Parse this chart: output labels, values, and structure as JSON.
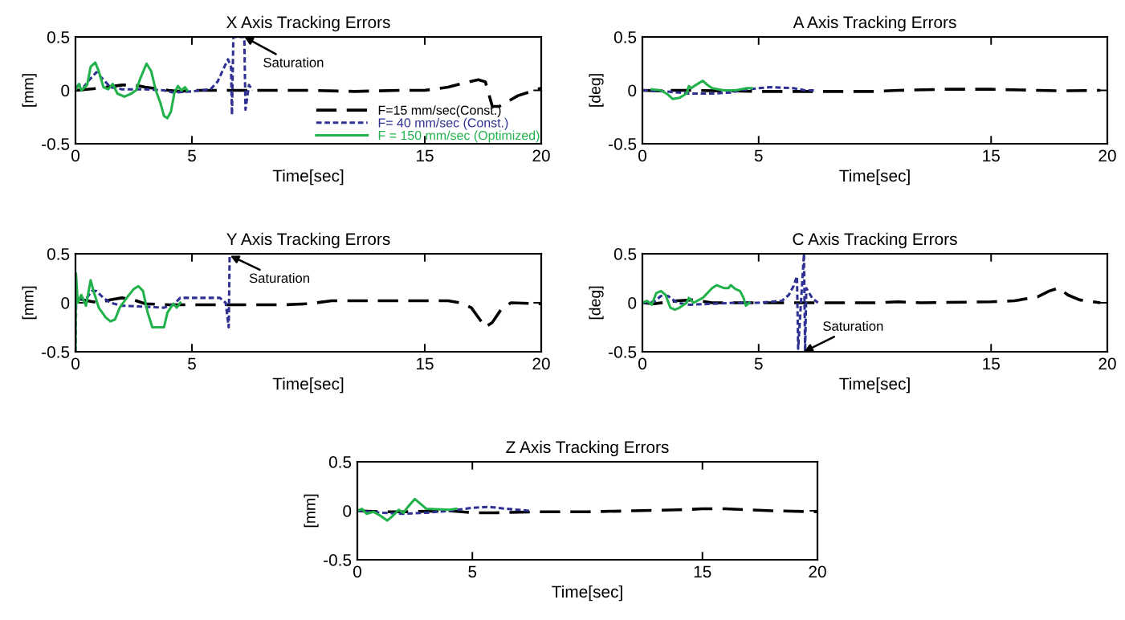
{
  "chart_data": [
    {
      "type": "line",
      "title": "X Axis Tracking Errors",
      "xlabel": "Time[sec]",
      "ylabel": "[mm]",
      "xlim": [
        0,
        20
      ],
      "ylim": [
        -0.5,
        0.5
      ],
      "xticks": [
        0,
        5,
        15,
        20
      ],
      "yticks": [
        -0.5,
        0,
        0.5
      ],
      "grid": false,
      "legend": "bottom right",
      "series": [
        {
          "name": "F=15 mm/sec(Const.)",
          "color": "#000000",
          "line_style": "dashed",
          "x": [
            0,
            1,
            2,
            2.5,
            3,
            4,
            4.5,
            5,
            7,
            10,
            12,
            14,
            15,
            16,
            16.7,
            17.3,
            17.6,
            17.9,
            18.2,
            19,
            20
          ],
          "values": [
            0,
            0.02,
            0.05,
            0.05,
            0.03,
            0.0,
            -0.01,
            0.0,
            0.0,
            0.0,
            -0.01,
            0.0,
            0.0,
            0.03,
            0.07,
            0.1,
            0.08,
            -0.15,
            -0.15,
            -0.05,
            0.02
          ]
        },
        {
          "name": "F= 40 mm/sec (Const.)",
          "color": "#2e3192",
          "line_style": "dotted",
          "x": [
            0,
            0.2,
            0.35,
            0.6,
            0.9,
            1.2,
            1.5,
            2.0,
            3.0,
            3.8,
            4.2,
            5.0,
            5.8,
            6.1,
            6.35,
            6.55,
            6.68,
            6.72,
            6.78,
            7.25,
            7.3,
            7.45,
            7.6
          ],
          "values": [
            0.03,
            0.05,
            0.03,
            0.1,
            0.17,
            0.1,
            0.03,
            0.01,
            0.01,
            0.0,
            -0.02,
            -0.01,
            0.01,
            0.08,
            0.2,
            0.29,
            0.22,
            -0.23,
            0.5,
            0.5,
            -0.18,
            0.05,
            0.0
          ]
        },
        {
          "name": "F = 150 mm/sec (Optimized)",
          "color": "#22b24c",
          "line_style": "solid",
          "x": [
            0,
            0.15,
            0.25,
            0.5,
            0.65,
            0.85,
            1.0,
            1.2,
            1.4,
            1.6,
            1.8,
            2.1,
            2.4,
            2.6,
            2.8,
            3.05,
            3.25,
            3.45,
            3.65,
            3.8,
            3.95,
            4.1,
            4.25,
            4.4,
            4.55,
            4.7,
            4.8
          ],
          "values": [
            0.0,
            0.06,
            0.0,
            0.05,
            0.22,
            0.26,
            0.18,
            0.03,
            0.01,
            0.06,
            -0.03,
            -0.06,
            -0.03,
            0.0,
            0.12,
            0.25,
            0.18,
            0.0,
            -0.12,
            -0.24,
            -0.26,
            -0.2,
            -0.02,
            0.04,
            0.0,
            0.03,
            0.0
          ]
        }
      ],
      "annotations": [
        {
          "text": "Saturation",
          "x": 7.25,
          "y": 0.5
        }
      ]
    },
    {
      "type": "line",
      "title": "A Axis Tracking Errors",
      "xlabel": "Time[sec]",
      "ylabel": "[deg]",
      "xlim": [
        0,
        20
      ],
      "ylim": [
        -0.5,
        0.5
      ],
      "xticks": [
        0,
        5,
        15,
        20
      ],
      "yticks": [
        -0.5,
        0,
        0.5
      ],
      "grid": false,
      "series": [
        {
          "color": "#000000",
          "line_style": "dashed",
          "x": [
            0,
            1,
            1.1,
            1.2,
            2,
            5,
            8,
            10,
            11,
            13,
            15,
            17,
            18,
            19.7
          ],
          "values": [
            0,
            -0.005,
            0.02,
            0.0,
            0.0,
            -0.01,
            -0.01,
            -0.01,
            0.0,
            0.01,
            0.01,
            0.0,
            -0.005,
            0.0
          ]
        },
        {
          "color": "#2e3192",
          "line_style": "dotted",
          "x": [
            0,
            1.0,
            2,
            3,
            3.8,
            4.2,
            5,
            5.5,
            6.5,
            7.0,
            7.5
          ],
          "values": [
            0.0,
            -0.01,
            -0.03,
            -0.03,
            -0.02,
            0.0,
            0.02,
            0.03,
            0.02,
            0.0,
            0.0
          ]
        },
        {
          "color": "#22b24c",
          "line_style": "solid",
          "x": [
            0.4,
            0.8,
            1.1,
            1.3,
            1.6,
            1.9,
            2.0,
            2.1,
            2.3,
            2.6,
            2.8,
            3.0,
            3.5,
            4.0,
            4.5,
            4.7
          ],
          "values": [
            0.01,
            0.0,
            -0.04,
            -0.08,
            -0.07,
            -0.03,
            0.04,
            0.02,
            0.05,
            0.09,
            0.05,
            0.02,
            0.0,
            0.0,
            0.02,
            0.02
          ]
        }
      ]
    },
    {
      "type": "line",
      "title": "Y Axis Tracking Errors",
      "xlabel": "Time[sec]",
      "ylabel": "[mm]",
      "xlim": [
        0,
        20
      ],
      "ylim": [
        -0.5,
        0.5
      ],
      "xticks": [
        0,
        5,
        15,
        20
      ],
      "yticks": [
        -0.5,
        0,
        0.5
      ],
      "grid": false,
      "series": [
        {
          "color": "#000000",
          "line_style": "dashed",
          "x": [
            0,
            0.5,
            1,
            1.5,
            2,
            2.5,
            3,
            4,
            5,
            7,
            9,
            10,
            11,
            12,
            14,
            16,
            16.5,
            17,
            17.3,
            17.6,
            17.9,
            18.3,
            18.7,
            20
          ],
          "values": [
            0.05,
            0.02,
            0.0,
            0.03,
            0.05,
            0.03,
            -0.01,
            -0.02,
            -0.02,
            -0.02,
            -0.02,
            -0.01,
            0.02,
            0.02,
            0.02,
            0.02,
            0.0,
            -0.05,
            -0.15,
            -0.25,
            -0.2,
            -0.06,
            0.0,
            -0.01
          ]
        },
        {
          "color": "#2e3192",
          "line_style": "dotted",
          "x": [
            0,
            0.03,
            0.2,
            0.4,
            0.7,
            0.9,
            1.2,
            1.5,
            2,
            3,
            3.8,
            4.2,
            4.5,
            5.5,
            6.2,
            6.45,
            6.58,
            6.62
          ],
          "values": [
            -0.5,
            0.05,
            0.05,
            0.02,
            0.12,
            0.12,
            0.05,
            0.0,
            -0.03,
            -0.04,
            -0.05,
            -0.02,
            0.05,
            0.05,
            0.05,
            0.0,
            -0.25,
            0.48
          ]
        },
        {
          "color": "#22b24c",
          "line_style": "solid",
          "x": [
            0,
            0.02,
            0.1,
            0.25,
            0.45,
            0.65,
            0.8,
            1.0,
            1.3,
            1.5,
            1.7,
            1.9,
            2.2,
            2.5,
            2.7,
            2.9,
            3.1,
            3.3,
            3.8,
            3.95,
            4.2,
            4.35,
            4.5
          ],
          "values": [
            -0.5,
            0.3,
            0.0,
            0.08,
            -0.03,
            0.23,
            0.1,
            -0.05,
            -0.15,
            -0.19,
            -0.17,
            -0.05,
            0.05,
            0.14,
            0.17,
            0.12,
            -0.1,
            -0.25,
            -0.25,
            -0.1,
            -0.01,
            -0.05,
            0.0
          ]
        }
      ],
      "annotations": [
        {
          "text": "Saturation",
          "x": 6.65,
          "y": 0.48
        }
      ]
    },
    {
      "type": "line",
      "title": "C Axis Tracking Errors",
      "xlabel": "Time[sec]",
      "ylabel": "[deg]",
      "xlim": [
        0,
        20
      ],
      "ylim": [
        -0.5,
        0.5
      ],
      "xticks": [
        0,
        5,
        15,
        20
      ],
      "yticks": [
        -0.5,
        0,
        0.5
      ],
      "grid": false,
      "series": [
        {
          "color": "#000000",
          "line_style": "dashed",
          "x": [
            0,
            0.5,
            1.5,
            2.2,
            3,
            5,
            7,
            10,
            11,
            12,
            15,
            16,
            17,
            17.5,
            17.9,
            18.3,
            18.8,
            19.7
          ],
          "values": [
            0,
            -0.01,
            0.02,
            0.03,
            0.0,
            0.0,
            0.0,
            0.0,
            0.01,
            0.0,
            0.01,
            0.02,
            0.06,
            0.12,
            0.15,
            0.08,
            0.03,
            0.0
          ]
        },
        {
          "color": "#2e3192",
          "line_style": "dotted",
          "x": [
            0,
            0.5,
            0.8,
            1.1,
            1.5,
            2,
            3,
            4,
            5,
            6,
            6.3,
            6.5,
            6.65,
            6.7,
            6.95,
            7.0,
            7.05,
            7.3,
            7.55
          ],
          "values": [
            0,
            0.01,
            0.07,
            0.07,
            0.0,
            -0.02,
            -0.01,
            0.0,
            0.0,
            0.02,
            0.08,
            0.17,
            0.27,
            -0.47,
            0.5,
            -0.5,
            0.15,
            0.05,
            0.0
          ]
        },
        {
          "color": "#22b24c",
          "line_style": "solid",
          "x": [
            0,
            0.2,
            0.4,
            0.6,
            0.8,
            1.0,
            1.2,
            1.4,
            1.6,
            1.9,
            2.0,
            2.2,
            2.6,
            3.0,
            3.2,
            3.5,
            3.7,
            3.8,
            4.0,
            4.2,
            4.35,
            4.45,
            4.6
          ],
          "values": [
            0,
            0.02,
            -0.02,
            0.1,
            0.12,
            0.08,
            -0.05,
            -0.07,
            -0.05,
            0.0,
            0.05,
            0.0,
            0.05,
            0.15,
            0.18,
            0.15,
            0.15,
            0.18,
            0.14,
            0.12,
            0.05,
            -0.03,
            0.0
          ]
        }
      ],
      "annotations": [
        {
          "text": "Saturation",
          "x": 6.95,
          "y": -0.5
        }
      ]
    },
    {
      "type": "line",
      "title": "Z Axis Tracking Errors",
      "xlabel": "Time[sec]",
      "ylabel": "[mm]",
      "xlim": [
        0,
        20
      ],
      "ylim": [
        -0.5,
        0.5
      ],
      "xticks": [
        0,
        5,
        15,
        20
      ],
      "yticks": [
        -0.5,
        0,
        0.5
      ],
      "grid": false,
      "series": [
        {
          "color": "#000000",
          "line_style": "dashed",
          "x": [
            0,
            1,
            2,
            4,
            5,
            6,
            8,
            10,
            12,
            14,
            15,
            16,
            17,
            18,
            20
          ],
          "values": [
            0,
            -0.01,
            -0.01,
            0.0,
            -0.02,
            -0.02,
            -0.01,
            -0.01,
            0.0,
            0.01,
            0.02,
            0.02,
            0.01,
            0.0,
            -0.01
          ]
        },
        {
          "color": "#2e3192",
          "line_style": "dotted",
          "x": [
            0,
            1,
            2,
            3,
            4,
            5,
            5.7,
            6.5,
            7.5
          ],
          "values": [
            0.0,
            -0.02,
            -0.03,
            -0.02,
            0.0,
            0.03,
            0.04,
            0.02,
            0.0
          ]
        },
        {
          "color": "#22b24c",
          "line_style": "solid",
          "x": [
            0,
            0.2,
            0.4,
            0.7,
            1.0,
            1.3,
            1.5,
            1.8,
            2.0,
            2.2,
            2.5,
            2.8,
            3.0,
            4.0,
            4.3
          ],
          "values": [
            0.0,
            0.02,
            -0.03,
            -0.01,
            -0.05,
            -0.1,
            -0.06,
            0.01,
            -0.02,
            0.04,
            0.12,
            0.06,
            0.02,
            0.01,
            0.02
          ]
        }
      ]
    }
  ]
}
